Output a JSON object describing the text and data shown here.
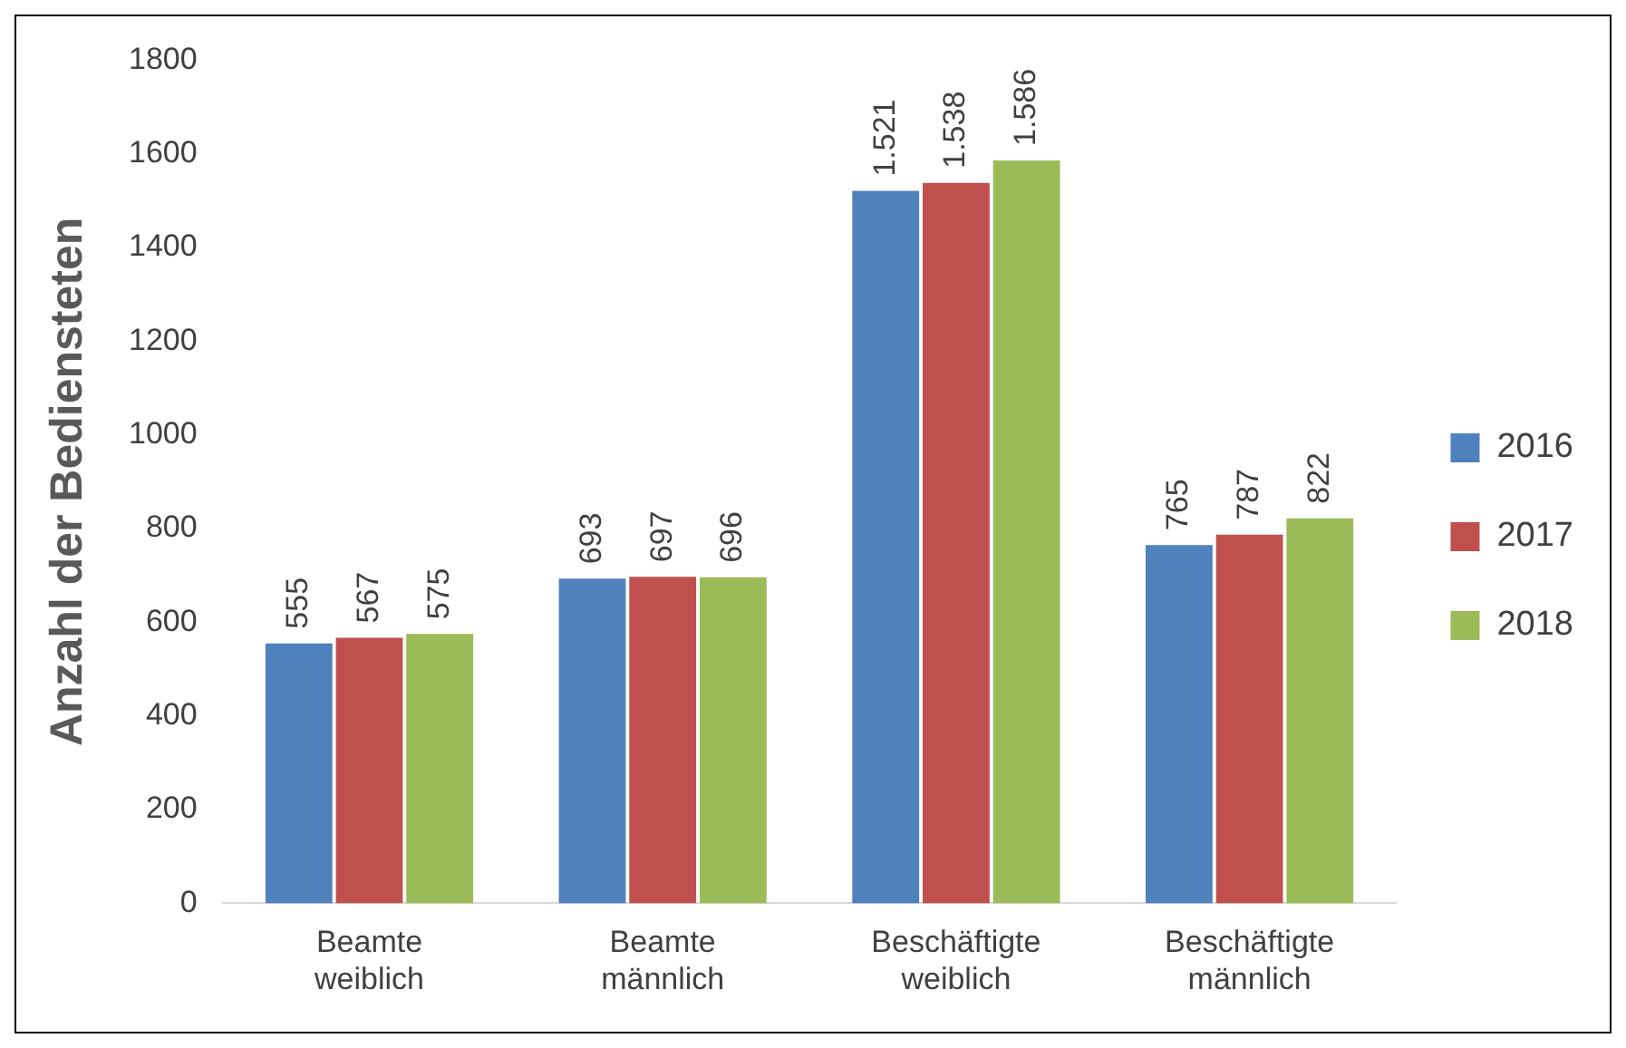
{
  "chart_data": {
    "type": "bar",
    "ylabel": "Anzahl der Bediensteten",
    "categories": [
      "Beamte weiblich",
      "Beamte männlich",
      "Beschäftigte weiblich",
      "Beschäftigte männlich"
    ],
    "series": [
      {
        "name": "2016",
        "color": "#4f81bd",
        "values": [
          555,
          693,
          1521,
          765
        ],
        "value_labels": [
          "555",
          "693",
          "1.521",
          "765"
        ]
      },
      {
        "name": "2017",
        "color": "#c0504d",
        "values": [
          567,
          697,
          1538,
          787
        ],
        "value_labels": [
          "567",
          "697",
          "1.538",
          "787"
        ]
      },
      {
        "name": "2018",
        "color": "#9bbb59",
        "values": [
          575,
          696,
          1586,
          822
        ],
        "value_labels": [
          "575",
          "696",
          "1.586",
          "822"
        ]
      }
    ],
    "ylim": [
      0,
      1800
    ],
    "yticks": [
      0,
      200,
      400,
      600,
      800,
      1000,
      1200,
      1400,
      1600,
      1800
    ],
    "grid": false,
    "legend": "right"
  }
}
